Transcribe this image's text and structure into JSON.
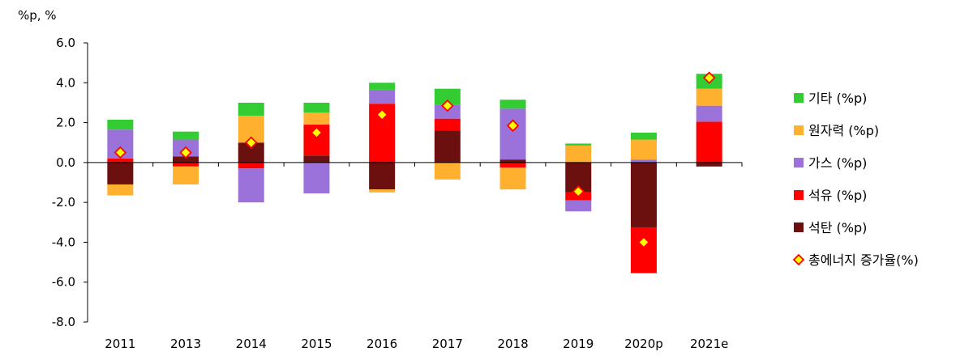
{
  "chart_data": {
    "type": "bar",
    "stacked": true,
    "unit_label": "%p, %",
    "categories": [
      "2011",
      "2013",
      "2014",
      "2015",
      "2016",
      "2017",
      "2018",
      "2019",
      "2020p",
      "2021e"
    ],
    "y_ticks": [
      "6.0",
      "4.0",
      "2.0",
      "0.0",
      "-2.0",
      "-4.0",
      "-6.0",
      "-8.0"
    ],
    "ylim": [
      -8,
      6
    ],
    "grid": false,
    "legend_position": "right",
    "series": [
      {
        "name": "석탄 (%p)",
        "color": "#6b0f0f",
        "values": [
          -1.1,
          0.3,
          1.0,
          0.35,
          -1.35,
          1.6,
          0.15,
          -1.5,
          -3.25,
          -0.2
        ]
      },
      {
        "name": "석유 (%p)",
        "color": "#ff0000",
        "values": [
          0.2,
          -0.2,
          -0.3,
          1.55,
          2.95,
          0.6,
          -0.25,
          -0.4,
          -2.3,
          2.05
        ]
      },
      {
        "name": "가스 (%p)",
        "color": "#9b72d9",
        "values": [
          1.45,
          0.85,
          -1.7,
          -1.55,
          0.7,
          0.7,
          2.55,
          -0.55,
          0.15,
          0.8
        ]
      },
      {
        "name": "원자력 (%p)",
        "color": "#ffb02e",
        "values": [
          -0.55,
          -0.9,
          1.35,
          0.6,
          -0.15,
          -0.85,
          -1.1,
          0.85,
          1.0,
          0.85
        ]
      },
      {
        "name": "기타 (%p)",
        "color": "#33cc33",
        "values": [
          0.5,
          0.4,
          0.65,
          0.5,
          0.35,
          0.8,
          0.45,
          0.1,
          0.35,
          0.75
        ]
      }
    ],
    "total_series": {
      "name": "총에너지 증가율(%)",
      "marker_color": "#ffff00",
      "marker_edge": "#ff0000",
      "values": [
        0.5,
        0.5,
        1.0,
        1.5,
        2.4,
        2.85,
        1.85,
        -1.45,
        -4.0,
        4.25
      ]
    },
    "legend_order": [
      "기타 (%p)",
      "원자력 (%p)",
      "가스 (%p)",
      "석유 (%p)",
      "석탄 (%p)",
      "총에너지 증가율(%)"
    ]
  }
}
